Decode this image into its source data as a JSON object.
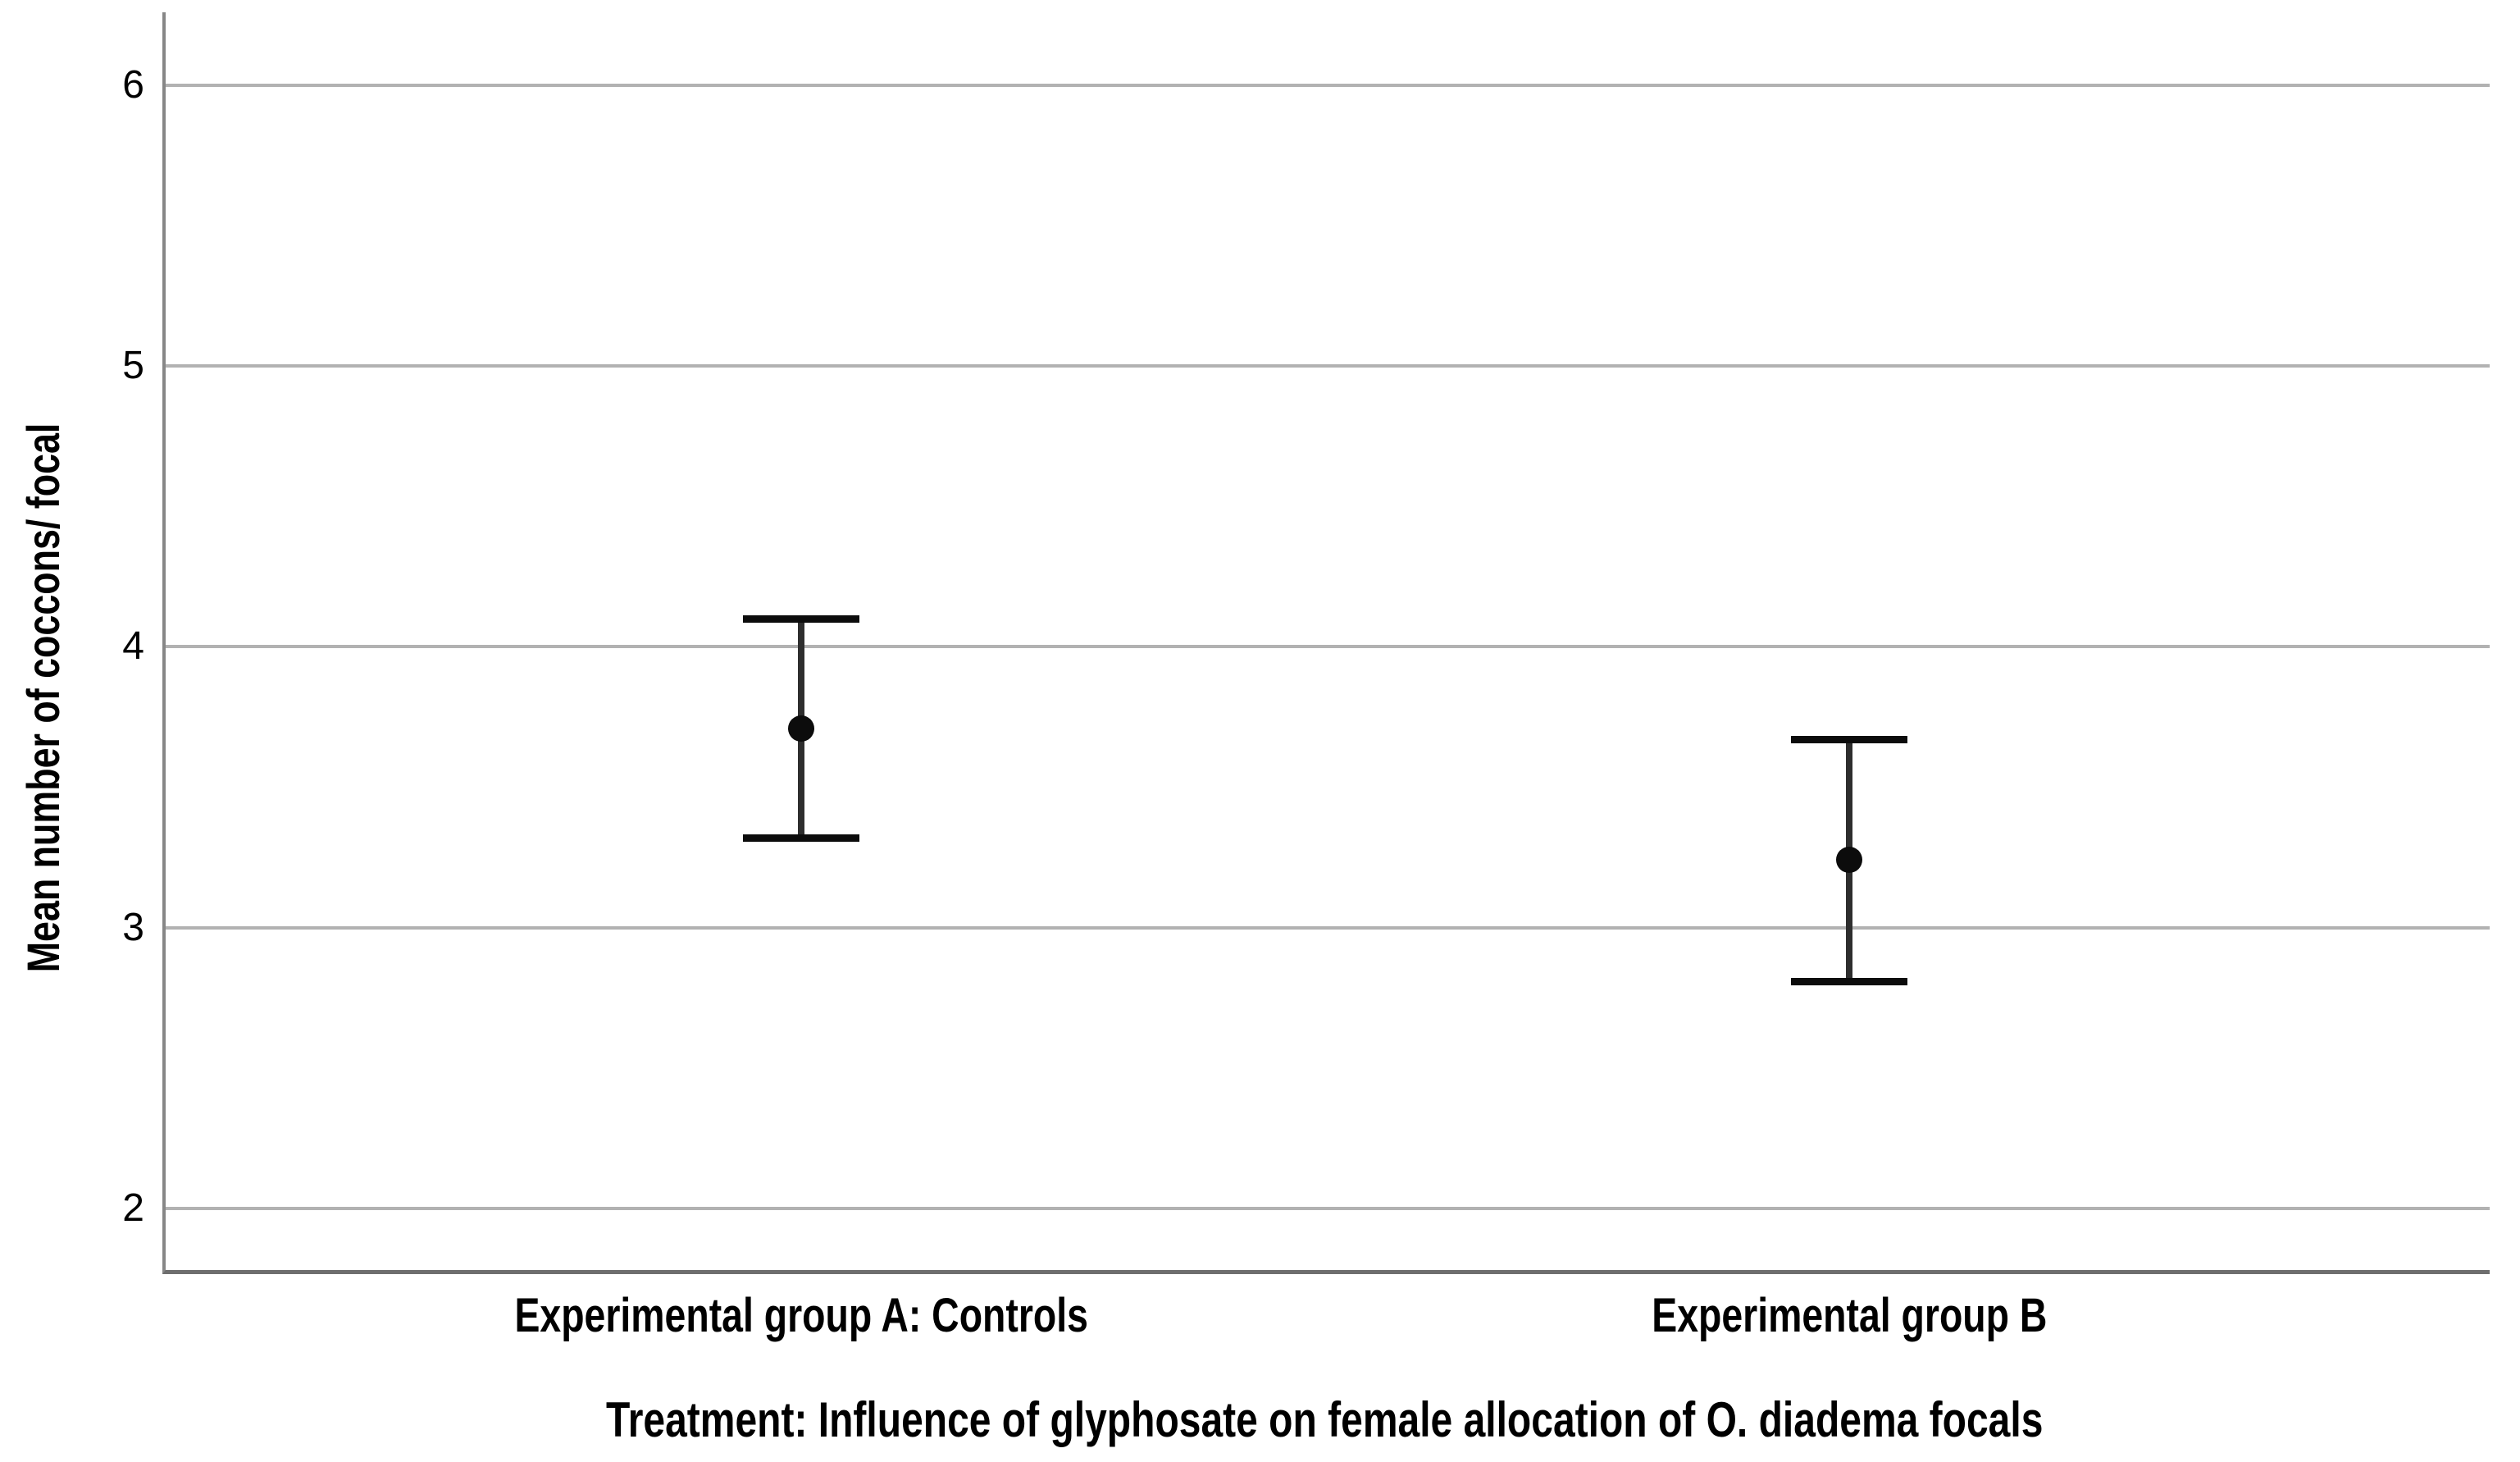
{
  "figure": {
    "background": "#ffffff",
    "axis_color": "#878787",
    "grid_color": "#b2b2b2",
    "errorbar_color": "#2e2e2e",
    "marker_color": "#0c0c0c",
    "text_color": "#000000"
  },
  "chart_data": {
    "type": "scatter",
    "subtype": "errorbar-means",
    "title": "",
    "ylabel": "Mean number of coccons/ focal",
    "xlabel": "Treatment: Influence of glyphosate on female allocation of O. diadema focals",
    "categories": [
      "Experimental group A: Controls",
      "Experimental group B"
    ],
    "points": [
      {
        "label": "Experimental group A: Controls",
        "mean": 3.71,
        "upper": 4.1,
        "lower": 3.32
      },
      {
        "label": "Experimental group B",
        "mean": 3.24,
        "upper": 3.67,
        "lower": 2.81
      }
    ],
    "yticks": [
      6,
      5,
      4,
      3,
      2
    ],
    "ylim": [
      1.78,
      6.26
    ],
    "grid": true,
    "legend": false,
    "marker": "filled-circle"
  }
}
